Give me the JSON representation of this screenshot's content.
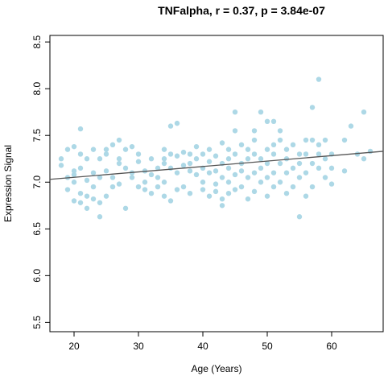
{
  "chart_data": {
    "type": "scatter",
    "title": "TNFalpha, r = 0.37, p = 3.84e-07",
    "x_label": "Age (Years)",
    "y_label": "Expression Signal",
    "xlim": [
      16.25,
      68
    ],
    "ylim": [
      5.4,
      8.57
    ],
    "xticks": [
      20,
      30,
      40,
      50,
      60
    ],
    "yticks": [
      5.5,
      {
        "value": 6,
        "label": "6.0"
      },
      6.5,
      {
        "value": 7,
        "label": "7.0"
      },
      7.5,
      {
        "value": 8,
        "label": "8.0"
      },
      8.5
    ],
    "color": "#add8e6",
    "x": [
      18,
      18,
      19,
      19,
      19,
      20,
      20,
      20,
      20,
      20,
      21,
      21,
      21,
      21,
      21,
      22,
      22,
      22,
      22,
      23,
      23,
      23,
      23,
      24,
      24,
      24,
      24,
      25,
      25,
      25,
      25,
      26,
      26,
      26,
      27,
      27,
      27,
      27,
      28,
      28,
      28,
      29,
      29,
      29,
      30,
      30,
      30,
      31,
      31,
      31,
      32,
      32,
      32,
      33,
      33,
      33,
      34,
      34,
      34,
      34,
      34,
      35,
      35,
      35,
      35,
      36,
      36,
      36,
      36,
      37,
      37,
      37,
      38,
      38,
      38,
      38,
      39,
      39,
      39,
      40,
      40,
      40,
      40,
      41,
      41,
      41,
      41,
      42,
      42,
      42,
      42,
      43,
      43,
      43,
      43,
      43,
      44,
      44,
      44,
      44,
      44,
      45,
      45,
      45,
      45,
      45,
      46,
      46,
      46,
      46,
      47,
      47,
      47,
      47,
      48,
      48,
      48,
      48,
      48,
      49,
      49,
      49,
      49,
      50,
      50,
      50,
      50,
      50,
      51,
      51,
      51,
      51,
      51,
      52,
      52,
      52,
      52,
      53,
      53,
      53,
      53,
      54,
      54,
      54,
      55,
      55,
      55,
      55,
      56,
      56,
      56,
      56,
      57,
      57,
      57,
      57,
      58,
      58,
      58,
      58,
      59,
      59,
      59,
      60,
      60,
      60,
      62,
      62,
      63,
      64,
      65,
      65,
      66
    ],
    "y": [
      7.25,
      7.18,
      7.35,
      6.92,
      7.05,
      7.38,
      7.08,
      6.8,
      7.0,
      7.12,
      7.57,
      7.3,
      6.88,
      6.78,
      7.15,
      6.85,
      6.72,
      7.02,
      7.25,
      7.35,
      6.95,
      6.82,
      7.1,
      6.63,
      7.05,
      7.25,
      6.78,
      7.35,
      7.3,
      6.85,
      7.12,
      7.4,
      7.05,
      6.95,
      7.45,
      7.2,
      6.98,
      7.25,
      6.72,
      7.15,
      7.35,
      7.38,
      7.05,
      7.1,
      7.22,
      6.95,
      7.3,
      7.12,
      7.0,
      6.92,
      7.25,
      7.08,
      6.88,
      7.15,
      6.95,
      7.05,
      7.35,
      7.25,
      6.85,
      7.0,
      7.2,
      7.6,
      7.15,
      6.8,
      7.3,
      7.63,
      7.1,
      6.92,
      7.28,
      7.32,
      7.18,
      6.95,
      7.12,
      7.3,
      6.88,
      7.2,
      7.25,
      7.08,
      7.38,
      7.15,
      7.0,
      7.3,
      6.92,
      7.22,
      7.1,
      6.85,
      7.35,
      7.28,
      6.98,
      7.12,
      6.9,
      6.75,
      7.2,
      7.42,
      7.05,
      6.82,
      7.35,
      7.15,
      6.88,
      7.25,
      7.0,
      7.75,
      7.55,
      7.3,
      7.08,
      6.92,
      7.4,
      7.2,
      6.95,
      7.12,
      7.35,
      7.05,
      7.25,
      6.82,
      7.55,
      7.1,
      7.3,
      6.9,
      7.45,
      7.75,
      7.25,
      7.0,
      7.15,
      7.65,
      7.35,
      7.05,
      6.85,
      7.2,
      7.65,
      7.4,
      7.1,
      6.95,
      7.3,
      7.55,
      7.2,
      7.0,
      7.45,
      7.25,
      7.1,
      6.88,
      7.35,
      7.15,
      6.95,
      7.4,
      6.63,
      7.3,
      7.05,
      7.2,
      7.45,
      7.1,
      6.85,
      7.3,
      7.8,
      7.45,
      7.2,
      6.95,
      8.1,
      7.3,
      7.15,
      7.4,
      7.45,
      7.25,
      7.05,
      7.3,
      6.98,
      7.15,
      7.45,
      7.12,
      7.6,
      7.3,
      7.75,
      7.25,
      7.33
    ],
    "trend": {
      "color": "#555555",
      "x": [
        16.25,
        68
      ],
      "y": [
        7.03,
        7.33
      ]
    }
  }
}
